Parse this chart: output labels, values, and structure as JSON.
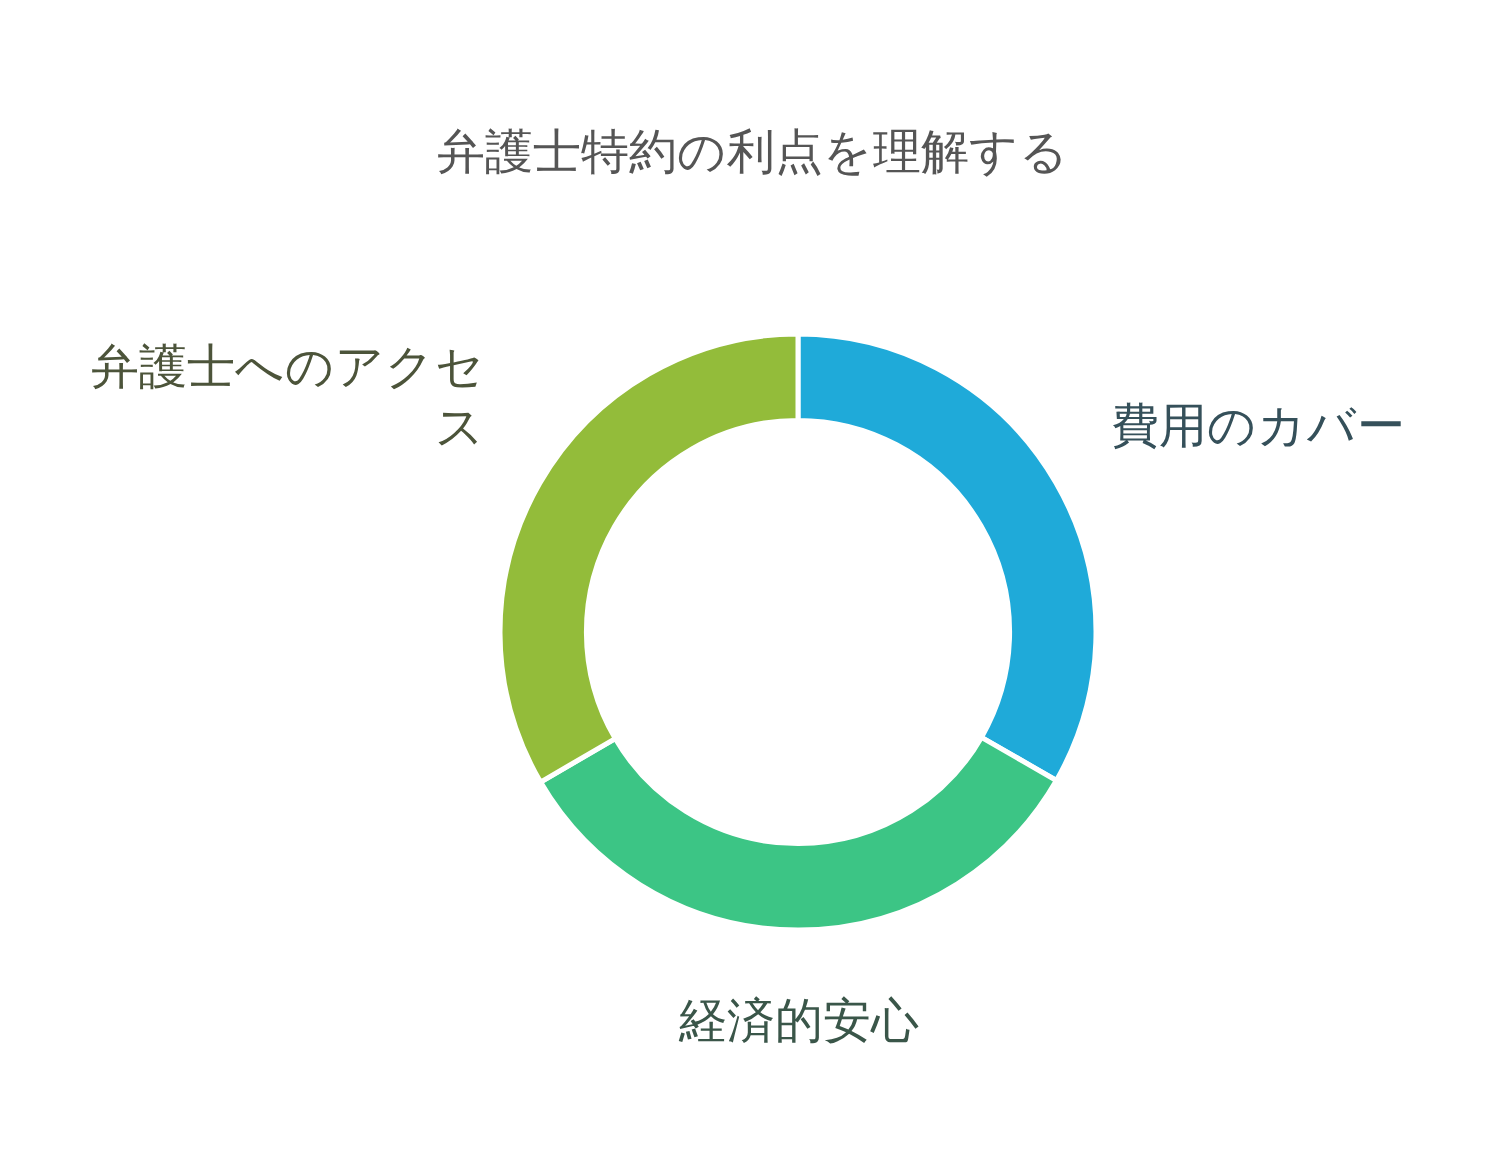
{
  "chart_data": {
    "type": "donut",
    "title": "弁護士特約の利点を理解する",
    "categories": [
      "費用のカバー",
      "経済的安心",
      "弁護士へのアクセス"
    ],
    "values": [
      33.3,
      33.3,
      33.4
    ],
    "colors": [
      "#1faad9",
      "#3cc585",
      "#93bc3a"
    ]
  }
}
